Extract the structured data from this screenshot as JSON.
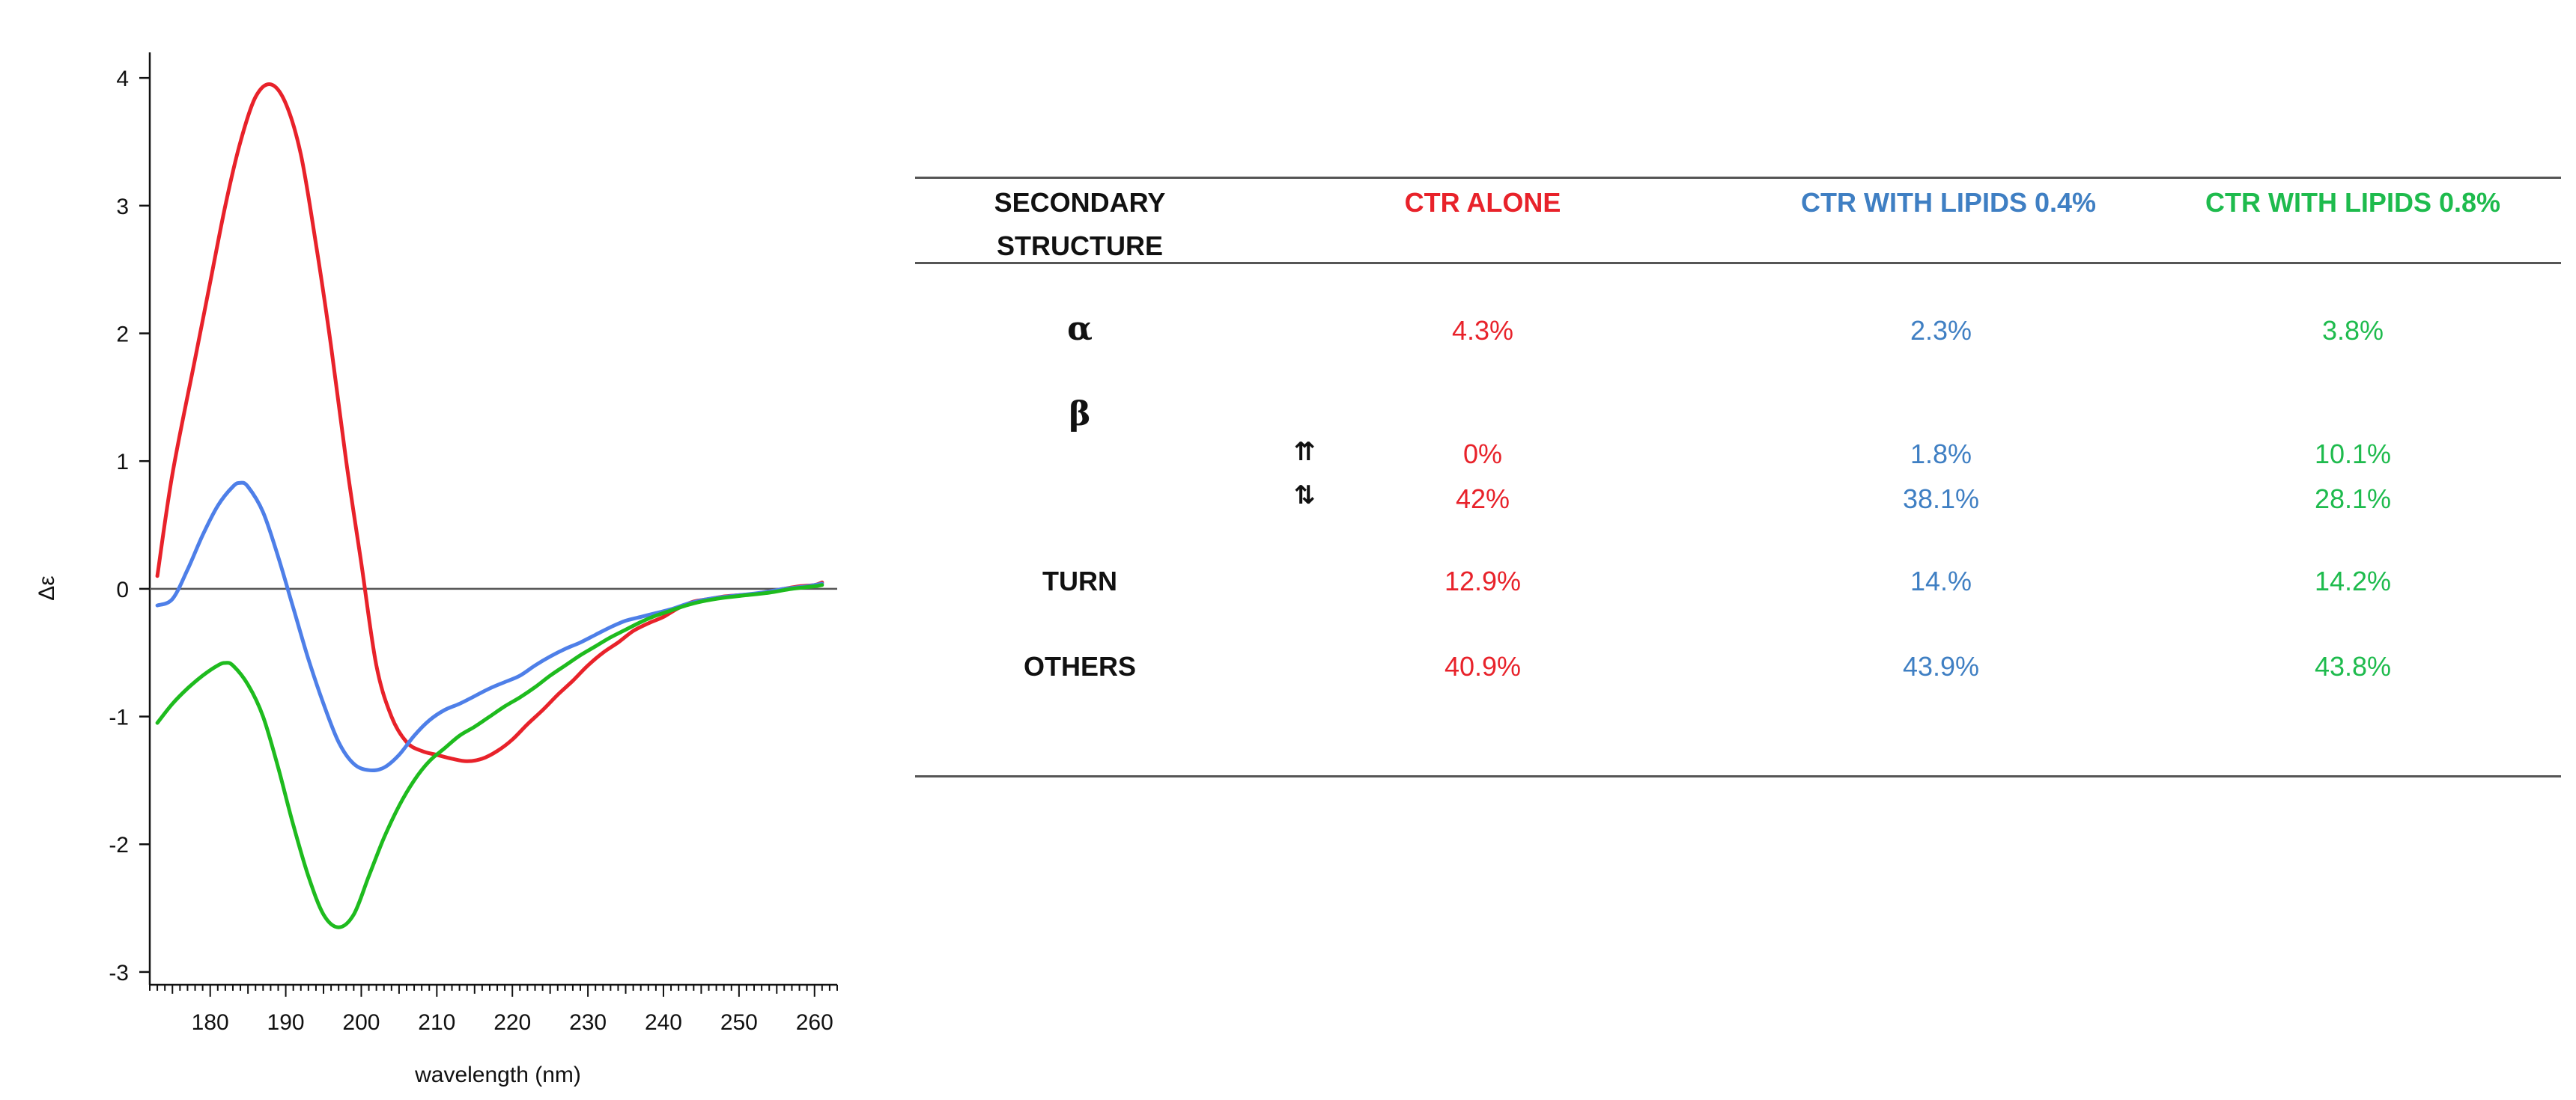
{
  "chart_data": {
    "type": "line",
    "title": "",
    "xlabel": "wavelength (nm)",
    "ylabel": "Δε",
    "xlim": [
      172,
      263
    ],
    "ylim": [
      -3.1,
      4.2
    ],
    "x_ticks": [
      180,
      190,
      200,
      210,
      220,
      230,
      240,
      250,
      260
    ],
    "y_ticks": [
      4,
      3,
      2,
      1,
      0,
      -1,
      -2,
      -3
    ],
    "zero_line": true,
    "grid": false,
    "legend": "none",
    "series": [
      {
        "color": "#e8222a",
        "x": [
          173,
          175,
          178,
          180,
          182,
          184,
          186,
          188,
          190,
          192,
          194,
          196,
          198,
          200,
          202,
          204,
          206,
          208,
          210,
          212,
          214,
          216,
          218,
          220,
          222,
          224,
          226,
          228,
          230,
          232,
          234,
          236,
          238,
          240,
          242,
          244,
          246,
          248,
          250,
          252,
          254,
          256,
          258,
          260,
          261
        ],
        "y": [
          0.1,
          0.9,
          1.8,
          2.4,
          3.0,
          3.5,
          3.85,
          3.95,
          3.8,
          3.4,
          2.7,
          1.9,
          1.0,
          0.2,
          -0.6,
          -1.0,
          -1.2,
          -1.27,
          -1.3,
          -1.33,
          -1.35,
          -1.33,
          -1.27,
          -1.18,
          -1.06,
          -0.95,
          -0.83,
          -0.72,
          -0.6,
          -0.5,
          -0.42,
          -0.33,
          -0.27,
          -0.22,
          -0.15,
          -0.1,
          -0.08,
          -0.06,
          -0.05,
          -0.04,
          -0.02,
          0.0,
          0.02,
          0.03,
          0.05
        ]
      },
      {
        "color": "#4e7fe8",
        "x": [
          173,
          175,
          177,
          179,
          181,
          183,
          184,
          185,
          187,
          189,
          191,
          193,
          195,
          197,
          199,
          201,
          203,
          205,
          207,
          209,
          211,
          213,
          215,
          217,
          219,
          221,
          223,
          225,
          227,
          229,
          231,
          233,
          235,
          237,
          239,
          241,
          243,
          245,
          247,
          250,
          253,
          256,
          259,
          261
        ],
        "y": [
          -0.13,
          -0.08,
          0.15,
          0.42,
          0.65,
          0.8,
          0.83,
          0.8,
          0.6,
          0.25,
          -0.15,
          -0.55,
          -0.9,
          -1.2,
          -1.37,
          -1.42,
          -1.4,
          -1.3,
          -1.15,
          -1.03,
          -0.95,
          -0.9,
          -0.84,
          -0.78,
          -0.73,
          -0.68,
          -0.6,
          -0.53,
          -0.47,
          -0.42,
          -0.36,
          -0.3,
          -0.25,
          -0.22,
          -0.19,
          -0.16,
          -0.12,
          -0.09,
          -0.07,
          -0.05,
          -0.03,
          0.0,
          0.02,
          0.04
        ]
      },
      {
        "color": "#1ebb1e",
        "x": [
          173,
          175,
          177,
          179,
          181,
          182,
          183,
          185,
          187,
          189,
          191,
          193,
          195,
          197,
          199,
          201,
          203,
          205,
          207,
          209,
          211,
          213,
          215,
          217,
          219,
          221,
          223,
          225,
          227,
          229,
          231,
          233,
          235,
          237,
          239,
          241,
          243,
          245,
          248,
          251,
          254,
          257,
          260,
          261
        ],
        "y": [
          -1.05,
          -0.9,
          -0.78,
          -0.68,
          -0.6,
          -0.58,
          -0.6,
          -0.75,
          -1.0,
          -1.4,
          -1.85,
          -2.25,
          -2.55,
          -2.65,
          -2.55,
          -2.25,
          -1.95,
          -1.7,
          -1.5,
          -1.35,
          -1.25,
          -1.15,
          -1.08,
          -1.0,
          -0.92,
          -0.85,
          -0.77,
          -0.68,
          -0.6,
          -0.52,
          -0.45,
          -0.38,
          -0.32,
          -0.26,
          -0.21,
          -0.17,
          -0.13,
          -0.1,
          -0.07,
          -0.05,
          -0.03,
          0.0,
          0.02,
          0.03
        ]
      }
    ]
  },
  "table": {
    "header": {
      "col0_line1": "SECONDARY",
      "col0_line2": "STRUCTURE",
      "col1": "CTR ALONE",
      "col2": "CTR WITH LIPIDS 0.4%",
      "col3": "CTR WITH LIPIDS 0.8%"
    },
    "colors": {
      "col1": "#e8222a",
      "col2": "#3f7fc3",
      "col3": "#1ebb4d"
    },
    "rows": {
      "alpha": {
        "label": "α",
        "v1": "4.3%",
        "v2": "2.3%",
        "v3": "3.8%"
      },
      "beta": {
        "label": "β"
      },
      "beta_parallel": {
        "label": "⇈",
        "v1": "0%",
        "v2": "1.8%",
        "v3": "10.1%"
      },
      "beta_antiparallel": {
        "label": "⇅",
        "v1": "42%",
        "v2": "38.1%",
        "v3": "28.1%"
      },
      "turn": {
        "label": "TURN",
        "v1": "12.9%",
        "v2": "14.%",
        "v3": "14.2%"
      },
      "others": {
        "label": "OTHERS",
        "v1": "40.9%",
        "v2": "43.9%",
        "v3": "43.8%"
      }
    }
  }
}
